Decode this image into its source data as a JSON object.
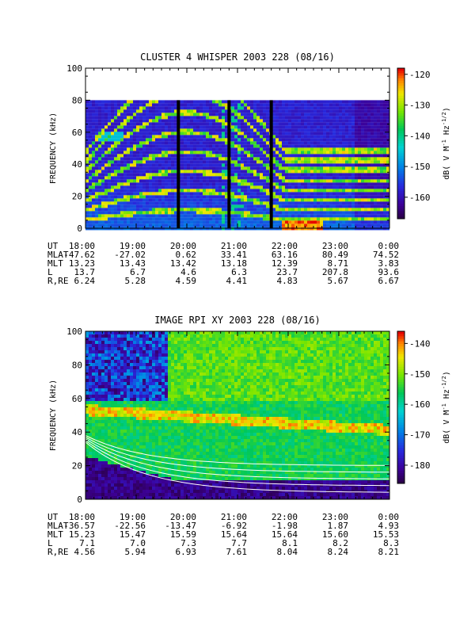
{
  "chart_data": [
    {
      "type": "heatmap",
      "title": "CLUSTER 4 WHISPER 2003 228 (08/16)",
      "ylabel": "FREQUENCY (kHz)",
      "ylim": [
        0,
        100
      ],
      "yticks": [
        "0",
        "20",
        "40",
        "60",
        "80",
        "100"
      ],
      "data_ylim": [
        0,
        80
      ],
      "xlim": [
        "18:00",
        "0:00"
      ],
      "colorbar": {
        "label": "dB( V M⁻¹ Hz⁻¹ᐟ²)",
        "label_parts": [
          "dB( V M",
          "-1",
          " Hz",
          "-1/2",
          ")"
        ],
        "ticks": [
          "-120",
          "-130",
          "-140",
          "-150",
          "-160"
        ],
        "range": [
          -167,
          -118
        ]
      },
      "gaps_ut": [
        "19:50",
        "20:50",
        "21:40"
      ],
      "ephemeris": {
        "row_labels": [
          "UT",
          "MLAT",
          "MLT",
          "L",
          "R,RE"
        ],
        "columns": [
          [
            "18:00",
            "-47.62",
            "13.23",
            "13.7",
            "6.24"
          ],
          [
            "19:00",
            "-27.02",
            "13.43",
            "6.7",
            "5.28"
          ],
          [
            "20:00",
            "0.62",
            "13.42",
            "4.6",
            "4.59"
          ],
          [
            "21:00",
            "33.41",
            "13.18",
            "6.3",
            "4.41"
          ],
          [
            "22:00",
            "63.16",
            "12.39",
            "23.7",
            "4.83"
          ],
          [
            "23:00",
            "80.49",
            "8.71",
            "207.8",
            "5.67"
          ],
          [
            "0:00",
            "74.52",
            "3.83",
            "93.6",
            "6.67"
          ]
        ]
      }
    },
    {
      "type": "heatmap",
      "title": "IMAGE RPI XY 2003 228 (08/16)",
      "ylabel": "FREQUENCY (kHz)",
      "ylim": [
        0,
        100
      ],
      "yticks": [
        "0",
        "20",
        "40",
        "60",
        "80",
        "100"
      ],
      "xlim": [
        "18:00",
        "0:00"
      ],
      "colorbar": {
        "label": "dB( V M⁻¹ Hz⁻¹ᐟ²)",
        "label_parts": [
          "dB( V M",
          "-1",
          " Hz",
          "-1/2",
          ")"
        ],
        "ticks": [
          "-140",
          "-150",
          "-160",
          "-170",
          "-180"
        ],
        "range": [
          -186,
          -136
        ]
      },
      "ephemeris": {
        "row_labels": [
          "UT",
          "MLAT",
          "MLT",
          "L",
          "R,RE"
        ],
        "columns": [
          [
            "18:00",
            "-36.57",
            "15.23",
            "7.1",
            "4.56"
          ],
          [
            "19:00",
            "-22.56",
            "15.47",
            "7.0",
            "5.94"
          ],
          [
            "20:00",
            "-13.47",
            "15.59",
            "7.3",
            "6.93"
          ],
          [
            "21:00",
            "-6.92",
            "15.64",
            "7.7",
            "7.61"
          ],
          [
            "22:00",
            "-1.98",
            "15.64",
            "8.1",
            "8.04"
          ],
          [
            "23:00",
            "1.87",
            "15.60",
            "8.2",
            "8.24"
          ],
          [
            "0:00",
            "4.93",
            "15.53",
            "8.3",
            "8.21"
          ]
        ]
      }
    }
  ]
}
